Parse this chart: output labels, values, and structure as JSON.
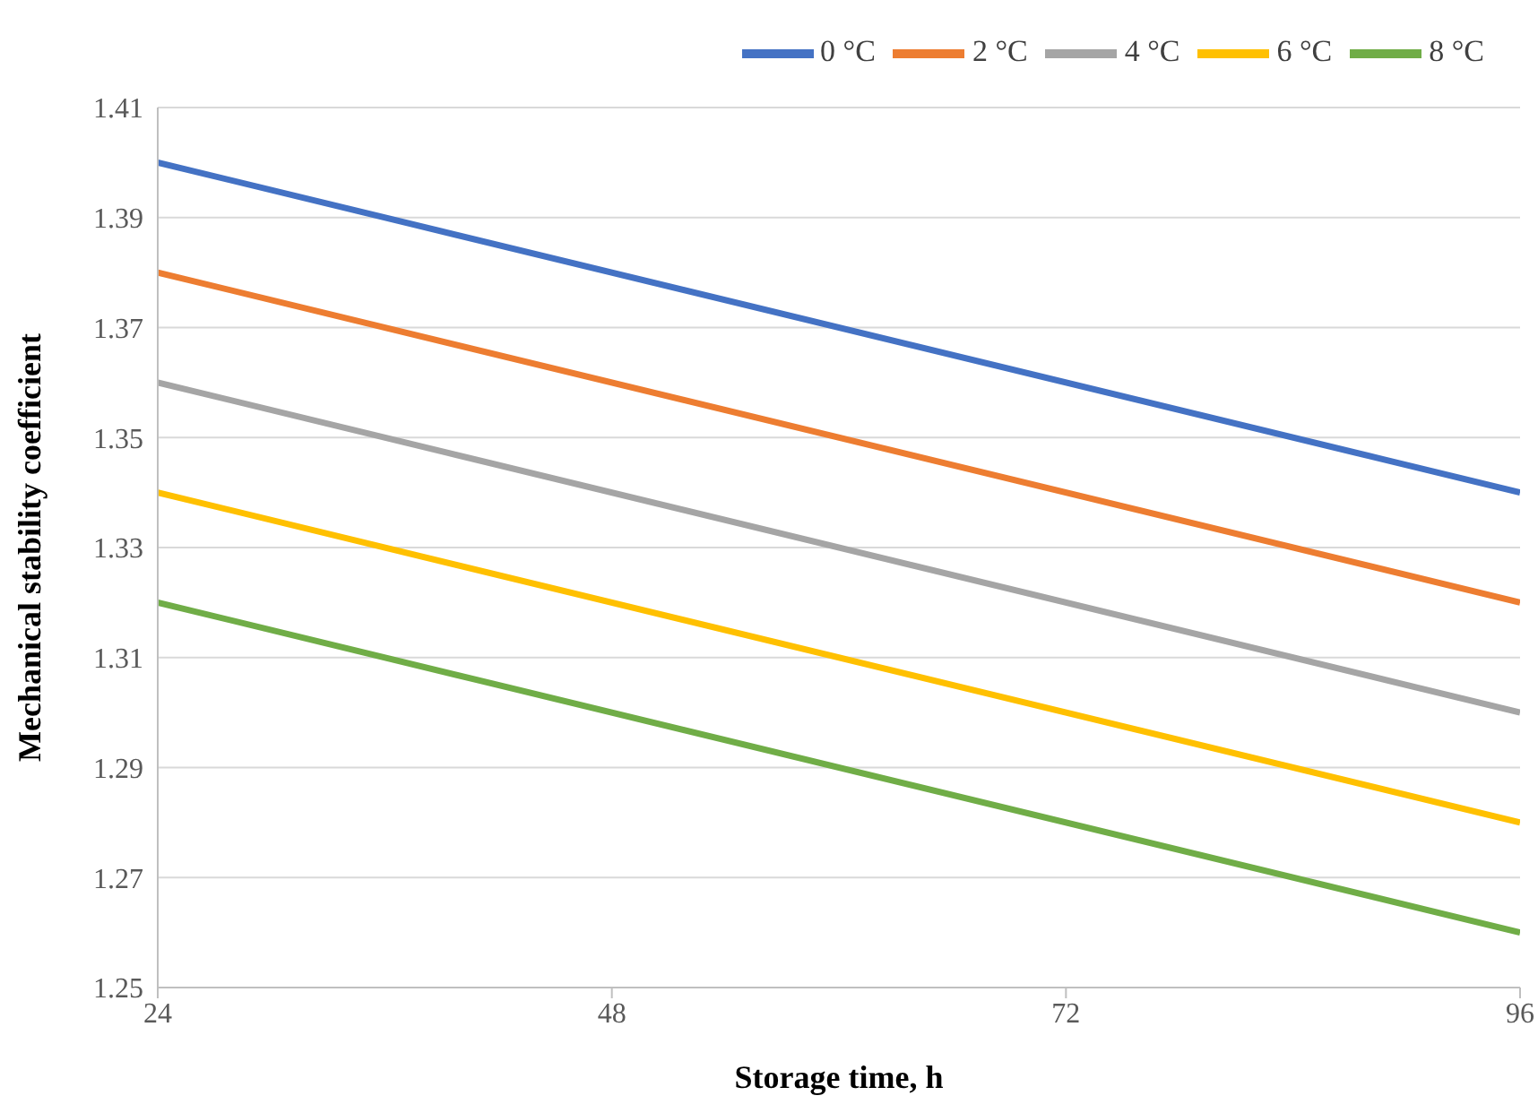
{
  "chart_data": {
    "type": "line",
    "xlabel": "Storage time, h",
    "ylabel": "Mechanical stability coefficient",
    "x": [
      24,
      96
    ],
    "series": [
      {
        "name": "0 °C",
        "color": "#4472c4",
        "values": [
          1.4,
          1.34
        ]
      },
      {
        "name": "2 °C",
        "color": "#ed7d31",
        "values": [
          1.38,
          1.32
        ]
      },
      {
        "name": "4 °C",
        "color": "#a5a5a5",
        "values": [
          1.36,
          1.3
        ]
      },
      {
        "name": "6 °C",
        "color": "#ffc000",
        "values": [
          1.34,
          1.28
        ]
      },
      {
        "name": "8 °C",
        "color": "#70ad47",
        "values": [
          1.32,
          1.26
        ]
      }
    ],
    "xlim": [
      24,
      96
    ],
    "xticks": [
      24,
      48,
      72,
      96
    ],
    "ylim": [
      1.25,
      1.41
    ],
    "yticks": [
      1.25,
      1.27,
      1.29,
      1.31,
      1.33,
      1.35,
      1.37,
      1.39,
      1.41
    ],
    "grid": "y",
    "legend": "top right"
  }
}
